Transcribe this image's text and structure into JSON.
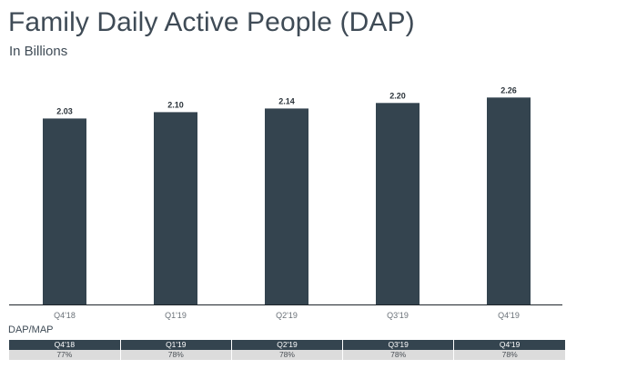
{
  "header": {
    "title": "Family Daily Active People (DAP)",
    "subtitle": "In Billions"
  },
  "colors": {
    "bar": "#34444f",
    "axis": "#1f262c",
    "table_header_bg": "#34444f",
    "table_row_bg": "#dcdcdc"
  },
  "chart_data": {
    "type": "bar",
    "title": "Family Daily Active People (DAP)",
    "subtitle": "In Billions",
    "categories": [
      "Q4'18",
      "Q1'19",
      "Q2'19",
      "Q3'19",
      "Q4'19"
    ],
    "values": [
      2.03,
      2.1,
      2.14,
      2.2,
      2.26
    ],
    "data_labels": [
      "2.03",
      "2.10",
      "2.14",
      "2.20",
      "2.26"
    ],
    "xlabel": "",
    "ylabel": "",
    "ylim": [
      0,
      2.6
    ],
    "grid": false,
    "legend": "none"
  },
  "dap_map": {
    "title": "DAP/MAP",
    "quarters": [
      "Q4'18",
      "Q1'19",
      "Q2'19",
      "Q3'19",
      "Q4'19"
    ],
    "values": [
      "77%",
      "78%",
      "78%",
      "78%",
      "78%"
    ]
  }
}
